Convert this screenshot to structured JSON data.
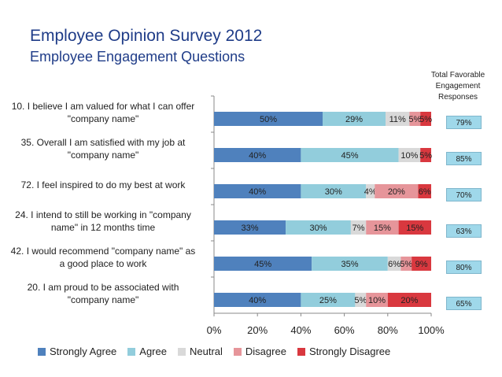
{
  "header": {
    "title": "Employee Opinion Survey 2012",
    "subtitle": "Employee Engagement Questions",
    "total_favorable_header": [
      "Total Favorable",
      "Engagement",
      "Responses"
    ]
  },
  "colors": {
    "strongly_agree": "#4f81bd",
    "agree": "#92cddc",
    "neutral": "#d9d9d9",
    "disagree": "#e6959a",
    "strongly_disagree": "#d9383f"
  },
  "chart_data": {
    "type": "bar",
    "orientation": "horizontal",
    "stacked": true,
    "title": "Employee Opinion Survey 2012",
    "subtitle": "Employee Engagement Questions",
    "xlim": [
      0,
      100
    ],
    "x_ticks": [
      "0%",
      "20%",
      "40%",
      "60%",
      "80%",
      "100%"
    ],
    "legend_position": "bottom",
    "series_names": [
      "Strongly Agree",
      "Agree",
      "Neutral",
      "Disagree",
      "Strongly Disagree"
    ],
    "categories": [
      {
        "label_lines": [
          "10. I believe I am valued for what I can offer",
          "\"company name\""
        ],
        "values": [
          50,
          29,
          11,
          5,
          5
        ],
        "labels": [
          "50%",
          "29%",
          "11%",
          "5%",
          "5%"
        ],
        "total_favorable": "79%"
      },
      {
        "label_lines": [
          "35. Overall I am satisfied with my job at",
          "\"company name\""
        ],
        "values": [
          40,
          45,
          10,
          0,
          5
        ],
        "labels": [
          "40%",
          "45%",
          "10%",
          "",
          "5%"
        ],
        "total_favorable": "85%"
      },
      {
        "label_lines": [
          "72. I feel inspired to do my best at work"
        ],
        "values": [
          40,
          30,
          4,
          20,
          6
        ],
        "labels": [
          "40%",
          "30%",
          "4%",
          "20%",
          "6%"
        ],
        "total_favorable": "70%"
      },
      {
        "label_lines": [
          "24. I intend to still be working in \"company",
          "name\" in 12 months time"
        ],
        "values": [
          33,
          30,
          7,
          15,
          15
        ],
        "labels": [
          "33%",
          "30%",
          "7%",
          "15%",
          "15%"
        ],
        "total_favorable": "63%"
      },
      {
        "label_lines": [
          "42. I would recommend \"company name\" as",
          "a good place to work"
        ],
        "values": [
          45,
          35,
          6,
          5,
          9
        ],
        "labels": [
          "45%",
          "35%",
          "6%",
          "5%",
          "9%"
        ],
        "total_favorable": "80%"
      },
      {
        "label_lines": [
          "20. I am proud to be associated with",
          "\"company name\""
        ],
        "values": [
          40,
          25,
          5,
          10,
          20
        ],
        "labels": [
          "40%",
          "25%",
          "5%",
          "10%",
          "20%"
        ],
        "total_favorable": "65%"
      }
    ]
  }
}
